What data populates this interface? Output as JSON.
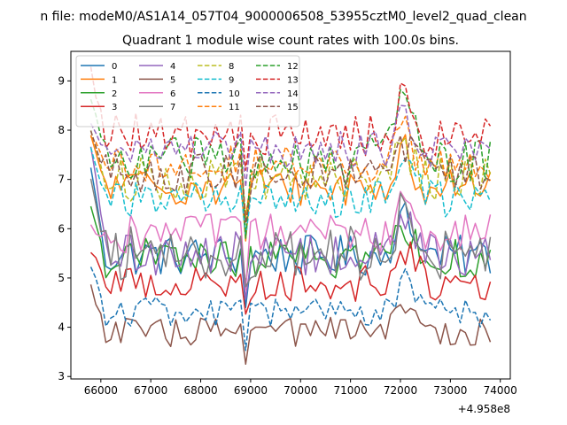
{
  "suptitle": "n file: modeM0/AS1A14_057T04_9000006508_53955cztM0_level2_quad_clean",
  "chart_data": {
    "type": "line",
    "title": "Quadrant 1 module wise count rates with 100.0s bins.",
    "xlabel": "",
    "ylabel": "",
    "x_offset_label": "+4.958e8",
    "xlim": [
      65400,
      74200
    ],
    "ylim": [
      2.95,
      9.6
    ],
    "xticks": [
      66000,
      67000,
      68000,
      69000,
      70000,
      71000,
      72000,
      73000,
      74000
    ],
    "yticks": [
      3,
      4,
      5,
      6,
      7,
      8,
      9
    ],
    "x_start": 65800,
    "x_step": 100,
    "n_points": 81,
    "legend": {
      "location": "top-left",
      "columns": 4
    },
    "series": [
      {
        "name": "0",
        "color": "#1f77b4",
        "dash": "solid",
        "base": 5.45,
        "amp": 0.42,
        "peak": 1.0,
        "start": 7.3
      },
      {
        "name": "1",
        "color": "#ff7f0e",
        "dash": "solid",
        "base": 6.85,
        "amp": 0.38,
        "peak": 0.9,
        "start": 7.9
      },
      {
        "name": "2",
        "color": "#2ca02c",
        "dash": "solid",
        "base": 5.4,
        "amp": 0.4,
        "peak": 0.9,
        "start": 6.4
      },
      {
        "name": "3",
        "color": "#d62728",
        "dash": "solid",
        "base": 4.9,
        "amp": 0.38,
        "peak": 0.8,
        "start": 5.6
      },
      {
        "name": "4",
        "color": "#9467bd",
        "dash": "solid",
        "base": 5.5,
        "amp": 0.45,
        "peak": 0.9,
        "start": 7.7
      },
      {
        "name": "5",
        "color": "#8c564b",
        "dash": "solid",
        "base": 3.9,
        "amp": 0.3,
        "peak": 0.6,
        "start": 4.85
      },
      {
        "name": "6",
        "color": "#e377c2",
        "dash": "solid",
        "base": 5.9,
        "amp": 0.4,
        "peak": 0.9,
        "start": 6.0
      },
      {
        "name": "7",
        "color": "#7f7f7f",
        "dash": "solid",
        "base": 5.5,
        "amp": 0.55,
        "peak": 1.2,
        "start": 7.1
      },
      {
        "name": "8",
        "color": "#bcbd22",
        "dash": "dashed",
        "base": 7.0,
        "amp": 0.45,
        "peak": 0.9,
        "start": 8.0
      },
      {
        "name": "9",
        "color": "#17becf",
        "dash": "dashed",
        "base": 6.6,
        "amp": 0.38,
        "peak": 0.8,
        "start": 7.6
      },
      {
        "name": "10",
        "color": "#1f77b4",
        "dash": "dashed",
        "base": 4.3,
        "amp": 0.32,
        "peak": 0.8,
        "start": 5.3
      },
      {
        "name": "11",
        "color": "#ff7f0e",
        "dash": "dashed",
        "base": 7.3,
        "amp": 0.38,
        "peak": 0.8,
        "start": 7.9
      },
      {
        "name": "12",
        "color": "#2ca02c",
        "dash": "dashed",
        "base": 7.4,
        "amp": 0.5,
        "peak": 1.6,
        "start": 8.6
      },
      {
        "name": "13",
        "color": "#d62728",
        "dash": "dashed",
        "base": 7.9,
        "amp": 0.45,
        "peak": 1.0,
        "start": 9.2
      },
      {
        "name": "14",
        "color": "#9467bd",
        "dash": "dashed",
        "base": 7.6,
        "amp": 0.38,
        "peak": 0.8,
        "start": 8.2
      },
      {
        "name": "15",
        "color": "#8c564b",
        "dash": "dashed",
        "base": 7.1,
        "amp": 0.42,
        "peak": 0.9,
        "start": 8.0
      }
    ]
  }
}
